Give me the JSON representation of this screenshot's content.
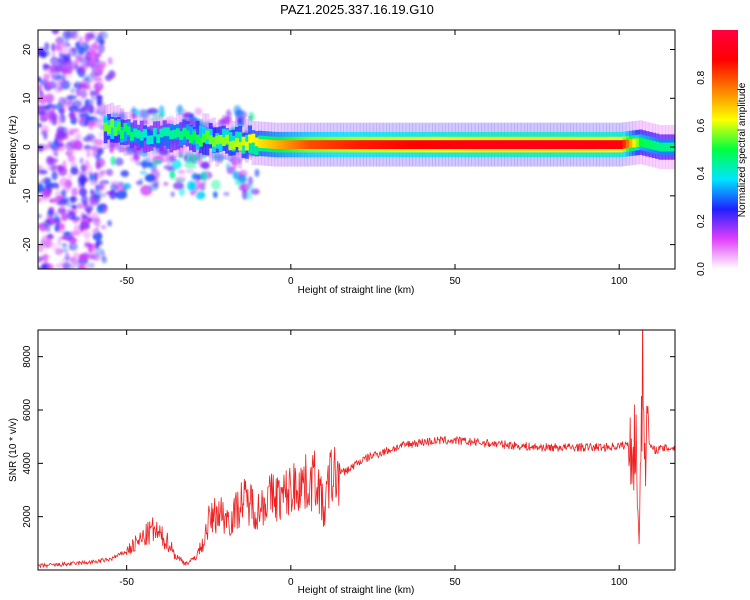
{
  "chart_data": [
    {
      "type": "heatmap",
      "title": "PAZ1.2025.337.16.19.G10",
      "xlabel": "Height of straight line (km)",
      "ylabel": "Frequency (Hz)",
      "xlim": [
        -77,
        117
      ],
      "ylim": [
        -25,
        24
      ],
      "xticks": [
        -50,
        0,
        50,
        100
      ],
      "yticks": [
        -20,
        -10,
        0,
        10,
        20
      ],
      "colorbar": {
        "label": "Normalized spectral amplitude",
        "range": [
          0.0,
          1.0
        ],
        "ticks": [
          0.0,
          0.2,
          0.4,
          0.6,
          0.8
        ],
        "colors": [
          "#ffffff",
          "#e040fb",
          "#2020ff",
          "#00e5ff",
          "#00ff40",
          "#ffff00",
          "#ff8000",
          "#ff0000",
          "#ff0040"
        ]
      },
      "ridge": [
        {
          "h": -55,
          "f": 4.0,
          "amp": 0.55
        },
        {
          "h": -45,
          "f": 2.0,
          "amp": 0.4
        },
        {
          "h": -35,
          "f": 2.5,
          "amp": 0.45
        },
        {
          "h": -25,
          "f": 1.5,
          "amp": 0.55
        },
        {
          "h": -15,
          "f": 1.0,
          "amp": 0.6
        },
        {
          "h": -5,
          "f": 0.5,
          "amp": 0.7
        },
        {
          "h": 5,
          "f": 0.5,
          "amp": 0.8
        },
        {
          "h": 20,
          "f": 0.5,
          "amp": 0.85
        },
        {
          "h": 40,
          "f": 0.5,
          "amp": 0.88
        },
        {
          "h": 60,
          "f": 0.5,
          "amp": 0.92
        },
        {
          "h": 80,
          "f": 0.5,
          "amp": 0.92
        },
        {
          "h": 100,
          "f": 0.5,
          "amp": 0.9
        },
        {
          "h": 106,
          "f": 1.0,
          "amp": 0.5
        },
        {
          "h": 112,
          "f": 0.0,
          "amp": 0.45
        }
      ]
    },
    {
      "type": "line",
      "title": "",
      "xlabel": "Height of straight line (km)",
      "ylabel": "SNR (10 * v/v)",
      "xlim": [
        -77,
        117
      ],
      "ylim": [
        0,
        9000
      ],
      "xticks": [
        -50,
        0,
        50,
        100
      ],
      "yticks": [
        2000,
        4000,
        6000,
        8000
      ],
      "series": [
        {
          "name": "SNR",
          "color": "#ee2020",
          "x": [
            -77,
            -70,
            -65,
            -60,
            -55,
            -50,
            -45,
            -42,
            -40,
            -37,
            -35,
            -32,
            -30,
            -27,
            -25,
            -22,
            -20,
            -18,
            -15,
            -12,
            -10,
            -8,
            -5,
            -3,
            0,
            3,
            5,
            8,
            10,
            12,
            15,
            18,
            20,
            25,
            30,
            35,
            40,
            45,
            50,
            55,
            60,
            65,
            70,
            75,
            80,
            85,
            90,
            95,
            100,
            103,
            105,
            106,
            107,
            108,
            110,
            113,
            117
          ],
          "y": [
            150,
            200,
            250,
            300,
            400,
            700,
            1200,
            1500,
            1300,
            1000,
            500,
            250,
            350,
            900,
            1800,
            2200,
            2000,
            1900,
            2600,
            2500,
            2200,
            2600,
            2800,
            2700,
            3000,
            3300,
            3200,
            3500,
            2100,
            3500,
            3600,
            3800,
            4000,
            4300,
            4500,
            4700,
            4800,
            4850,
            4850,
            4800,
            4750,
            4700,
            4650,
            4600,
            4600,
            4600,
            4600,
            4600,
            4650,
            4700,
            4900,
            1000,
            7500,
            5200,
            4500,
            4550,
            4600
          ]
        }
      ]
    }
  ]
}
